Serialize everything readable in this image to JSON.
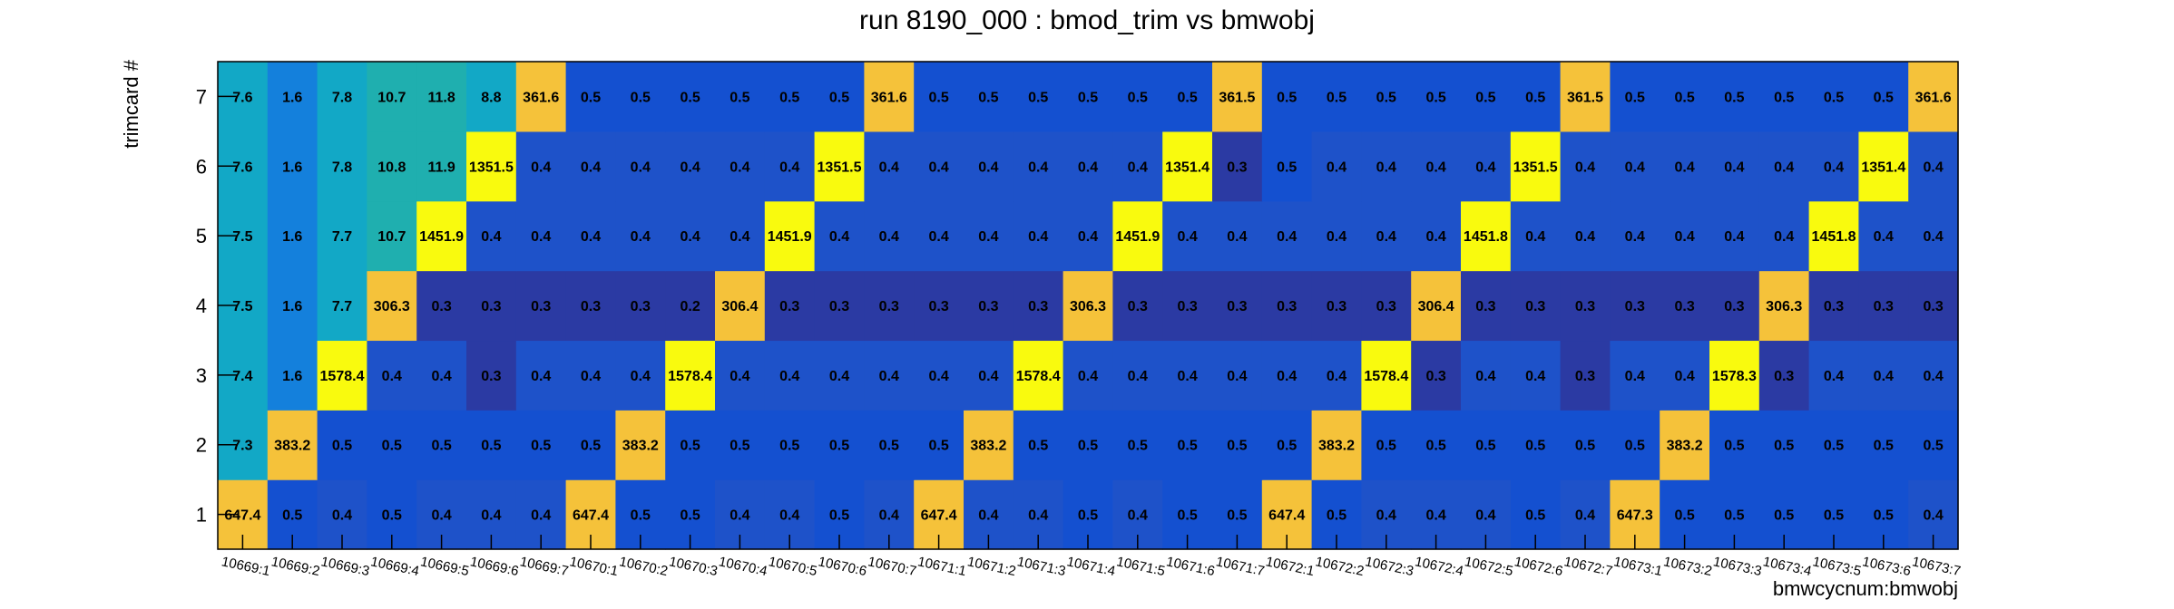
{
  "chart_data": {
    "type": "heatmap",
    "title": "run 8190_000 : bmod_trim vs bmwobj",
    "xlabel": "bmwcycnum:bmwobj",
    "ylabel": "trimcard #",
    "x_categories": [
      "10669:1",
      "10669:2",
      "10669:3",
      "10669:4",
      "10669:5",
      "10669:6",
      "10669:7",
      "10670:1",
      "10670:2",
      "10670:3",
      "10670:4",
      "10670:5",
      "10670:6",
      "10670:7",
      "10671:1",
      "10671:2",
      "10671:3",
      "10671:4",
      "10671:5",
      "10671:6",
      "10671:7",
      "10672:1",
      "10672:2",
      "10672:3",
      "10672:4",
      "10672:5",
      "10672:6",
      "10672:7",
      "10673:1",
      "10673:2",
      "10673:3",
      "10673:4",
      "10673:5",
      "10673:6",
      "10673:7"
    ],
    "y_categories": [
      "1",
      "2",
      "3",
      "4",
      "5",
      "6",
      "7"
    ],
    "values": [
      [
        "647.4",
        "0.5",
        "0.4",
        "0.5",
        "0.4",
        "0.4",
        "0.4",
        "647.4",
        "0.5",
        "0.5",
        "0.4",
        "0.4",
        "0.5",
        "0.4",
        "647.4",
        "0.4",
        "0.4",
        "0.5",
        "0.4",
        "0.5",
        "0.5",
        "647.4",
        "0.5",
        "0.4",
        "0.4",
        "0.4",
        "0.5",
        "0.4",
        "647.3",
        "0.5",
        "0.5",
        "0.5",
        "0.5",
        "0.5",
        "0.4"
      ],
      [
        "7.3",
        "383.2",
        "0.5",
        "0.5",
        "0.5",
        "0.5",
        "0.5",
        "0.5",
        "383.2",
        "0.5",
        "0.5",
        "0.5",
        "0.5",
        "0.5",
        "0.5",
        "383.2",
        "0.5",
        "0.5",
        "0.5",
        "0.5",
        "0.5",
        "0.5",
        "383.2",
        "0.5",
        "0.5",
        "0.5",
        "0.5",
        "0.5",
        "0.5",
        "383.2",
        "0.5",
        "0.5",
        "0.5",
        "0.5",
        "0.5"
      ],
      [
        "7.4",
        "1.6",
        "1578.4",
        "0.4",
        "0.4",
        "0.3",
        "0.4",
        "0.4",
        "0.4",
        "1578.4",
        "0.4",
        "0.4",
        "0.4",
        "0.4",
        "0.4",
        "0.4",
        "1578.4",
        "0.4",
        "0.4",
        "0.4",
        "0.4",
        "0.4",
        "0.4",
        "1578.4",
        "0.3",
        "0.4",
        "0.4",
        "0.3",
        "0.4",
        "0.4",
        "1578.3",
        "0.3",
        "0.4",
        "0.4",
        "0.4"
      ],
      [
        "7.5",
        "1.6",
        "7.7",
        "306.3",
        "0.3",
        "0.3",
        "0.3",
        "0.3",
        "0.3",
        "0.2",
        "306.4",
        "0.3",
        "0.3",
        "0.3",
        "0.3",
        "0.3",
        "0.3",
        "306.3",
        "0.3",
        "0.3",
        "0.3",
        "0.3",
        "0.3",
        "0.3",
        "306.4",
        "0.3",
        "0.3",
        "0.3",
        "0.3",
        "0.3",
        "0.3",
        "306.3",
        "0.3",
        "0.3",
        "0.3"
      ],
      [
        "7.5",
        "1.6",
        "7.7",
        "10.7",
        "1451.9",
        "0.4",
        "0.4",
        "0.4",
        "0.4",
        "0.4",
        "0.4",
        "1451.9",
        "0.4",
        "0.4",
        "0.4",
        "0.4",
        "0.4",
        "0.4",
        "1451.9",
        "0.4",
        "0.4",
        "0.4",
        "0.4",
        "0.4",
        "0.4",
        "1451.8",
        "0.4",
        "0.4",
        "0.4",
        "0.4",
        "0.4",
        "0.4",
        "1451.8",
        "0.4",
        "0.4"
      ],
      [
        "7.6",
        "1.6",
        "7.8",
        "10.8",
        "11.9",
        "1351.5",
        "0.4",
        "0.4",
        "0.4",
        "0.4",
        "0.4",
        "0.4",
        "1351.5",
        "0.4",
        "0.4",
        "0.4",
        "0.4",
        "0.4",
        "0.4",
        "1351.4",
        "0.3",
        "0.5",
        "0.4",
        "0.4",
        "0.4",
        "0.4",
        "1351.5",
        "0.4",
        "0.4",
        "0.4",
        "0.4",
        "0.4",
        "0.4",
        "1351.4",
        "0.4"
      ],
      [
        "7.6",
        "1.6",
        "7.8",
        "10.7",
        "11.8",
        "8.8",
        "361.6",
        "0.5",
        "0.5",
        "0.5",
        "0.5",
        "0.5",
        "0.5",
        "361.6",
        "0.5",
        "0.5",
        "0.5",
        "0.5",
        "0.5",
        "0.5",
        "361.5",
        "0.5",
        "0.5",
        "0.5",
        "0.5",
        "0.5",
        "0.5",
        "361.5",
        "0.5",
        "0.5",
        "0.5",
        "0.5",
        "0.5",
        "0.5",
        "361.6"
      ]
    ]
  }
}
